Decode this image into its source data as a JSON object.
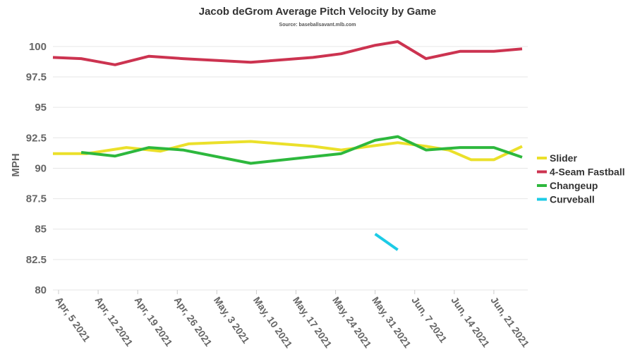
{
  "chart_data": {
    "type": "line",
    "title": "Jacob deGrom Average Pitch Velocity by Game",
    "subtitle": "Source: baseballsavant.mlb.com",
    "ylabel": "MPH",
    "xlabel": "",
    "ylim": [
      80,
      101.5
    ],
    "yticks": [
      80,
      82.5,
      85,
      87.5,
      90,
      92.5,
      95,
      97.5,
      100
    ],
    "yticks_labels": [
      "80",
      "82.5",
      "85",
      "87.5",
      "90",
      "92.5",
      "95",
      "97.5",
      "100"
    ],
    "xlim": [
      "2021-04-04",
      "2021-06-27"
    ],
    "xticks": [
      "2021-04-05",
      "2021-04-12",
      "2021-04-19",
      "2021-04-26",
      "2021-05-03",
      "2021-05-10",
      "2021-05-17",
      "2021-05-24",
      "2021-05-31",
      "2021-06-07",
      "2021-06-14",
      "2021-06-21"
    ],
    "xticks_labels": [
      "Apr, 5 2021",
      "Apr, 12 2021",
      "Apr, 19 2021",
      "Apr, 26 2021",
      "May, 3 2021",
      "May, 10 2021",
      "May, 17 2021",
      "May, 24 2021",
      "May, 31 2021",
      "Jun, 7 2021",
      "Jun, 14 2021",
      "Jun, 21 2021"
    ],
    "grid": true,
    "legend_position": "right",
    "series": [
      {
        "name": "Slider",
        "color": "#ebe02a",
        "points": [
          [
            "2021-04-04",
            91.2
          ],
          [
            "2021-04-10",
            91.2
          ],
          [
            "2021-04-17",
            91.7
          ],
          [
            "2021-04-23",
            91.4
          ],
          [
            "2021-04-28",
            92.0
          ],
          [
            "2021-05-03",
            92.1
          ],
          [
            "2021-05-09",
            92.2
          ],
          [
            "2021-05-20",
            91.8
          ],
          [
            "2021-05-25",
            91.5
          ],
          [
            "2021-05-30",
            91.8
          ],
          [
            "2021-06-04",
            92.1
          ],
          [
            "2021-06-09",
            91.8
          ],
          [
            "2021-06-13",
            91.5
          ],
          [
            "2021-06-17",
            90.7
          ],
          [
            "2021-06-21",
            90.7
          ],
          [
            "2021-06-26",
            91.8
          ]
        ]
      },
      {
        "name": "4-Seam Fastball",
        "color": "#cc3350",
        "points": [
          [
            "2021-04-04",
            99.1
          ],
          [
            "2021-04-09",
            99.0
          ],
          [
            "2021-04-15",
            98.5
          ],
          [
            "2021-04-21",
            99.2
          ],
          [
            "2021-04-27",
            99.0
          ],
          [
            "2021-05-09",
            98.7
          ],
          [
            "2021-05-20",
            99.1
          ],
          [
            "2021-05-25",
            99.4
          ],
          [
            "2021-05-31",
            100.1
          ],
          [
            "2021-06-04",
            100.4
          ],
          [
            "2021-06-09",
            99.0
          ],
          [
            "2021-06-15",
            99.6
          ],
          [
            "2021-06-21",
            99.6
          ],
          [
            "2021-06-26",
            99.8
          ]
        ]
      },
      {
        "name": "Changeup",
        "color": "#2db83d",
        "points": [
          [
            "2021-04-09",
            91.3
          ],
          [
            "2021-04-15",
            91.0
          ],
          [
            "2021-04-21",
            91.7
          ],
          [
            "2021-04-27",
            91.5
          ],
          [
            "2021-05-09",
            90.4
          ],
          [
            "2021-05-25",
            91.2
          ],
          [
            "2021-05-31",
            92.3
          ],
          [
            "2021-06-04",
            92.6
          ],
          [
            "2021-06-09",
            91.5
          ],
          [
            "2021-06-15",
            91.7
          ],
          [
            "2021-06-21",
            91.7
          ],
          [
            "2021-06-26",
            90.9
          ]
        ]
      },
      {
        "name": "Curveball",
        "color": "#1ccbe6",
        "points": [
          [
            "2021-05-31",
            84.6
          ],
          [
            "2021-06-04",
            83.3
          ]
        ]
      }
    ]
  }
}
